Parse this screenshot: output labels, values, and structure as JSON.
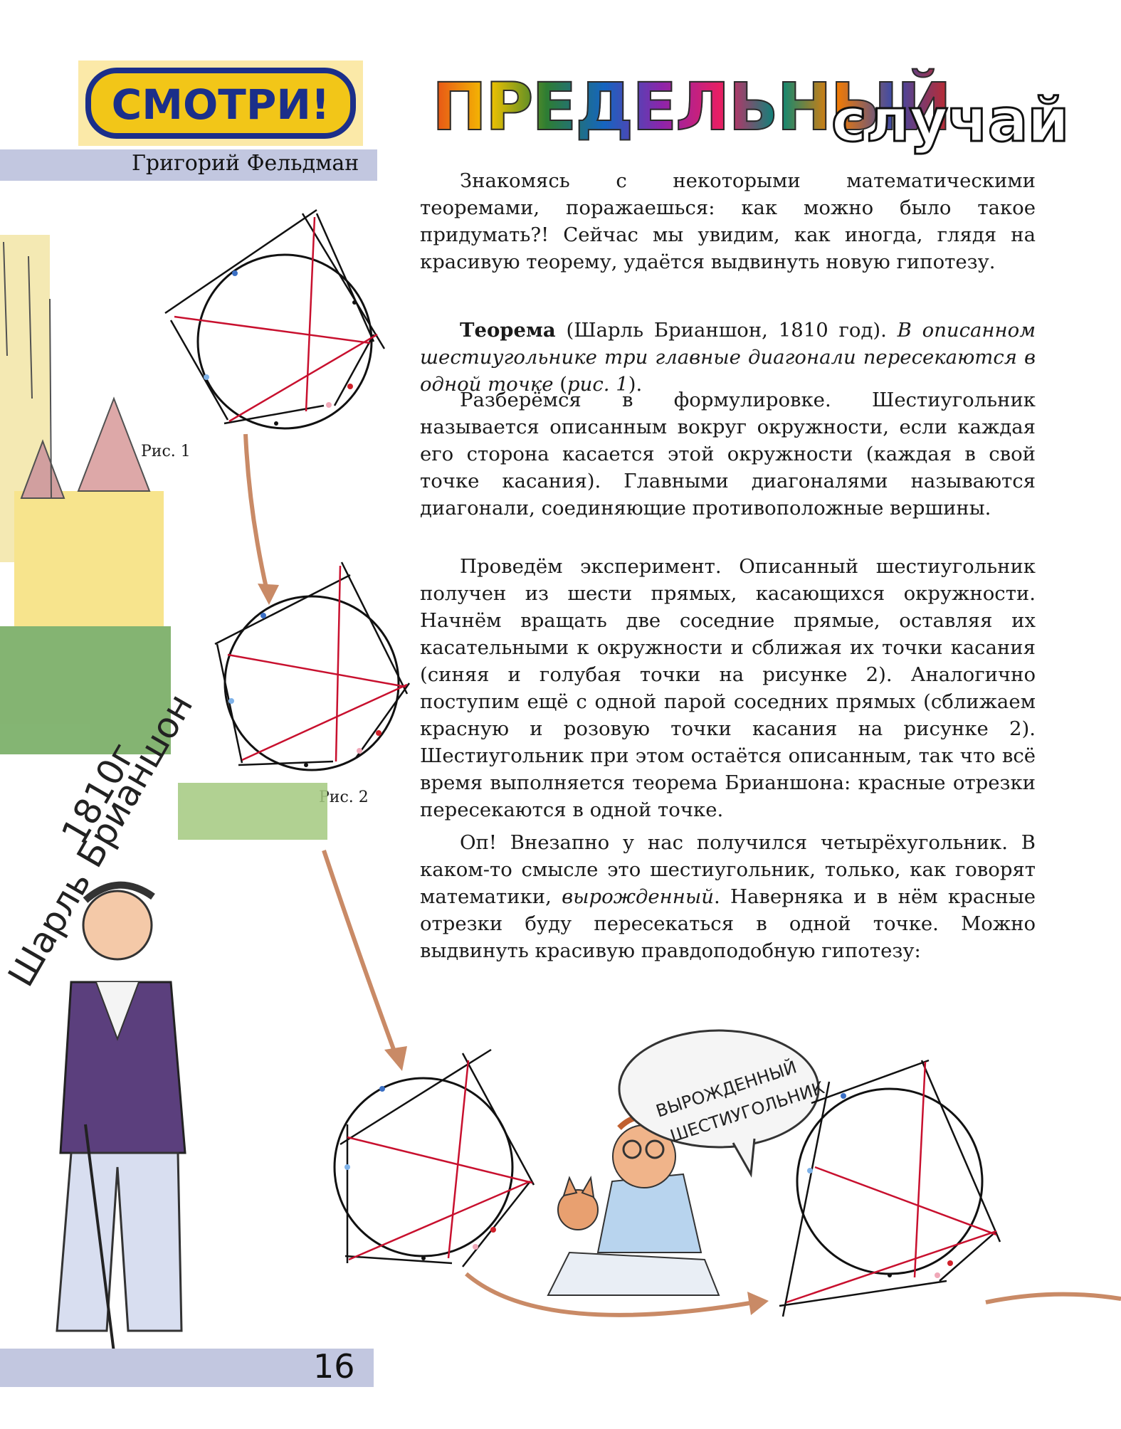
{
  "header": {
    "logo_text": "СМОТРИ!",
    "author": "Григорий Фельдман",
    "title_colored": "ПРЕДЕЛЬНЫЙ",
    "title_plain": "случай"
  },
  "article": {
    "intro": "Знакомясь с некоторыми математическими теоремами, поражаешься: как можно было такое придумать?! Сейчас мы увидим, как иногда, глядя на красивую теорему, удаётся выдвинуть новую гипотезу.",
    "theorem_label": "Теорема",
    "theorem_source": " (Шарль Брианшон, 1810 год). ",
    "theorem_statement": "В описанном шестиугольнике три главные диагонали пересекаются в одной точке",
    "theorem_ref_open": " (",
    "theorem_ref": "рис. 1",
    "theorem_ref_close": ").",
    "p_definition": "Разберёмся в формулировке. Шестиугольник называется описанным вокруг окружности, если каждая его сторона касается этой окружности (каждая в свой точке касания). Главными диагоналями называются диагонали, соединяющие противоположные вершины.",
    "p_experiment": "Проведём эксперимент. Описанный шестиугольник получен из шести прямых, касающихся окружности. Начнём вращать две соседние прямые, оставляя их касательными к окружности и сближая их точки касания (синяя и голубая точки на рисунке 2). Аналогично поступим ещё с одной парой соседних прямых (сближаем красную и розовую точки касания на рисунке 2). Шестиугольник при этом остаётся описанным, так что всё время выполняется теорема Брианшона: красные отрезки пересекаются в одной точке.",
    "p_oops_a": "Оп! Внезапно у нас получился четырёхугольник. В каком-то смысле это шестиугольник, только, как говорят математики, ",
    "p_oops_italic": "вырожденный",
    "p_oops_b": ". Наверняка и в нём красные отрезки буду пересекаться в одной точке. Можно выдвинуть красивую правдоподобную гипотезу:"
  },
  "figures": {
    "caption_1": "Рис. 1",
    "caption_2": "Рис. 2"
  },
  "illustrations": {
    "portrait_inscription_1": "Шарль Брианшон",
    "portrait_inscription_2": "1810г",
    "speech_bubble_1": "ВЫРОЖДЕННЫЙ",
    "speech_bubble_2": "ШЕСТИУГОЛЬНИК"
  },
  "footer": {
    "page_number": "16"
  },
  "colors": {
    "band": "#c2c7e0",
    "diagonal_red": "#c8102e",
    "arrow": "#c98a66",
    "tangent_blue": "#3a6fc4",
    "tangent_lightblue": "#7fb2e8",
    "tangent_red": "#d0202a",
    "tangent_pink": "#f0a8b8"
  }
}
